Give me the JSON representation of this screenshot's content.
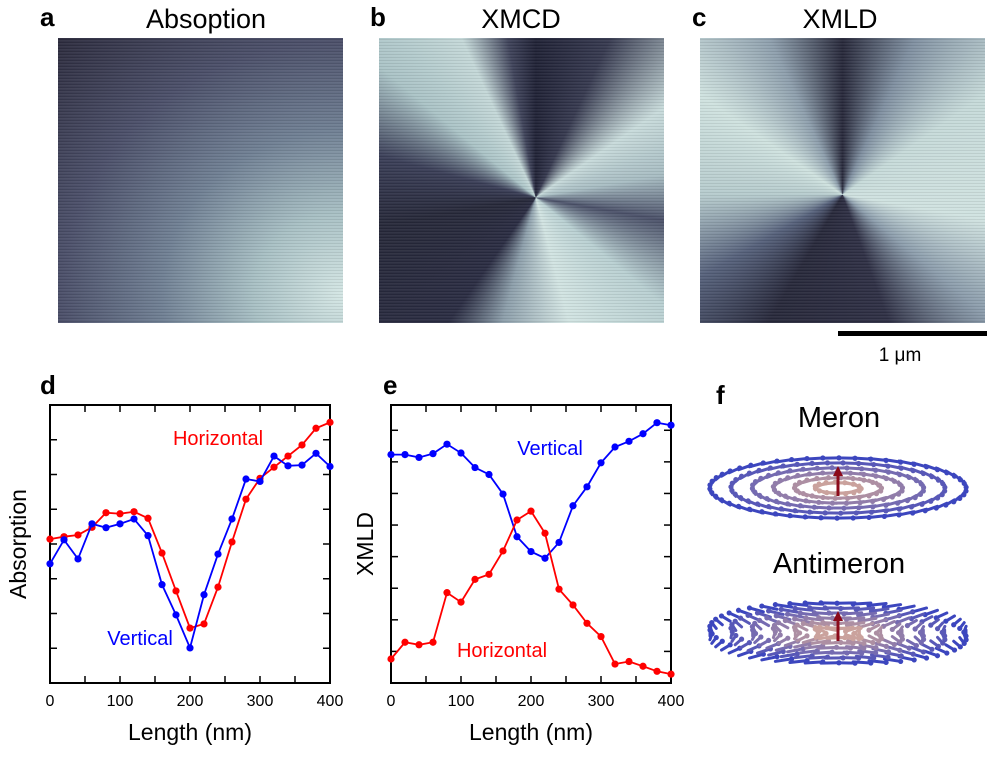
{
  "panels": {
    "a": {
      "label": "a",
      "title": "Absoption"
    },
    "b": {
      "label": "b",
      "title": "XMCD"
    },
    "c": {
      "label": "c",
      "title": "XMLD"
    },
    "d": {
      "label": "d"
    },
    "e": {
      "label": "e"
    },
    "f": {
      "label": "f",
      "meron": "Meron",
      "antimeron": "Antimeron"
    }
  },
  "scale_bar": {
    "label": "1 μm"
  },
  "colors": {
    "horizontal": "#ff0000",
    "vertical": "#0000ff"
  },
  "chart_data": [
    {
      "type": "line",
      "panel": "d",
      "xlabel": "Length (nm)",
      "ylabel": "Absorption",
      "xlim": [
        0,
        400
      ],
      "xticks": [
        0,
        100,
        200,
        300,
        400
      ],
      "ylim": [
        0,
        8
      ],
      "y_tick_labels_shown": false,
      "x": [
        0,
        20,
        40,
        60,
        80,
        100,
        120,
        140,
        160,
        180,
        200,
        220,
        240,
        260,
        280,
        300,
        320,
        340,
        360,
        380,
        400
      ],
      "series": [
        {
          "name": "Horizontal",
          "color": "#ff0000",
          "values": [
            4.14,
            4.21,
            4.26,
            4.48,
            4.9,
            4.87,
            4.93,
            4.74,
            3.74,
            2.65,
            1.58,
            1.7,
            2.76,
            4.06,
            5.29,
            5.89,
            6.21,
            6.53,
            6.85,
            7.33,
            7.5
          ]
        },
        {
          "name": "Vertical",
          "color": "#0000ff",
          "values": [
            3.43,
            4.12,
            3.57,
            4.58,
            4.47,
            4.58,
            4.72,
            4.24,
            2.83,
            1.96,
            1.01,
            2.54,
            3.71,
            4.72,
            5.87,
            5.8,
            6.53,
            6.25,
            6.27,
            6.61,
            6.23
          ]
        }
      ]
    },
    {
      "type": "line",
      "panel": "e",
      "xlabel": "Length (nm)",
      "ylabel": "XMLD",
      "xlim": [
        0,
        400
      ],
      "xticks": [
        0,
        100,
        200,
        300,
        400
      ],
      "ylim": [
        0,
        8.8
      ],
      "y_tick_labels_shown": false,
      "x": [
        0,
        20,
        40,
        60,
        80,
        100,
        120,
        140,
        160,
        180,
        200,
        220,
        240,
        260,
        280,
        300,
        320,
        340,
        360,
        380,
        400
      ],
      "series": [
        {
          "name": "Vertical",
          "color": "#0000ff",
          "values": [
            7.23,
            7.23,
            7.14,
            7.26,
            7.56,
            7.28,
            6.82,
            6.6,
            5.98,
            4.63,
            4.16,
            3.95,
            4.45,
            5.61,
            6.21,
            6.97,
            7.47,
            7.65,
            7.89,
            8.24,
            8.16
          ]
        },
        {
          "name": "Horizontal",
          "color": "#ff0000",
          "values": [
            0.76,
            1.29,
            1.21,
            1.29,
            2.86,
            2.56,
            3.28,
            3.44,
            4.18,
            5.16,
            5.44,
            4.74,
            2.97,
            2.47,
            1.89,
            1.47,
            0.6,
            0.68,
            0.53,
            0.37,
            0.28
          ]
        }
      ]
    }
  ]
}
